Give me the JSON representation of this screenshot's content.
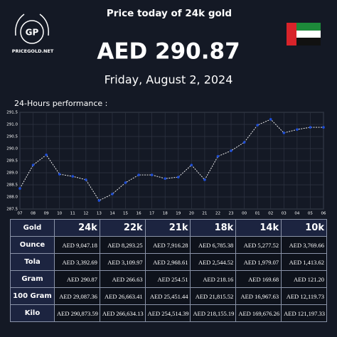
{
  "header": {
    "logo": "GP",
    "site": "PRICEGOLD.NET",
    "title": "Price today of 24k gold",
    "price": "AED 290.87",
    "date": "Friday, August 2, 2024"
  },
  "chart_data": {
    "type": "line",
    "title": "24-Hours performance :",
    "categories": [
      "07",
      "08",
      "09",
      "10",
      "11",
      "12",
      "13",
      "14",
      "15",
      "16",
      "17",
      "18",
      "19",
      "20",
      "21",
      "22",
      "23",
      "00",
      "01",
      "02",
      "03",
      "04",
      "05",
      "06"
    ],
    "series": [
      {
        "color": "#ffffff",
        "marker_color": "#1f4fd8",
        "values": [
          288.35,
          289.32,
          289.74,
          288.94,
          288.85,
          288.71,
          287.85,
          288.12,
          288.59,
          288.91,
          288.91,
          288.76,
          288.82,
          289.32,
          288.71,
          289.68,
          289.91,
          290.26,
          290.97,
          291.21,
          290.65,
          290.79,
          290.88,
          290.88
        ]
      }
    ],
    "ylim": [
      287.5,
      291.5
    ],
    "yticks": [
      287.5,
      {
        "value": 288,
        "label": "288.0"
      },
      288.5,
      {
        "value": 289,
        "label": "289.0"
      },
      289.5,
      {
        "value": 290,
        "label": "290.0"
      },
      290.5,
      {
        "value": 291,
        "label": "291.0"
      },
      291.5
    ],
    "grid": true
  },
  "table": {
    "columns": [
      "Gold",
      "24k",
      "22k",
      "21k",
      "18k",
      "14k",
      "10k"
    ],
    "rows": [
      [
        "Ounce",
        "AED 9,047.18",
        "AED 8,293.25",
        "AED 7,916.28",
        "AED 6,785.38",
        "AED 5,277.52",
        "AED 3,769.66"
      ],
      [
        "Tola",
        "AED 3,392.69",
        "AED 3,109.97",
        "AED 2,968.61",
        "AED 2,544.52",
        "AED 1,979.07",
        "AED 1,413.62"
      ],
      [
        "Gram",
        "AED 290.87",
        "AED 266.63",
        "AED 254.51",
        "AED 218.16",
        "AED 169.68",
        "AED 121.20"
      ],
      [
        "100 Gram",
        "AED 29,087.36",
        "AED 26,663.41",
        "AED 25,451.44",
        "AED 21,815.52",
        "AED 16,967.63",
        "AED 12,119.73"
      ],
      [
        "Kilo",
        "AED 290,873.59",
        "AED 266,634.13",
        "AED 254,514.39",
        "AED 218,155.19",
        "AED 169,676.26",
        "AED 121,197.33"
      ]
    ]
  }
}
